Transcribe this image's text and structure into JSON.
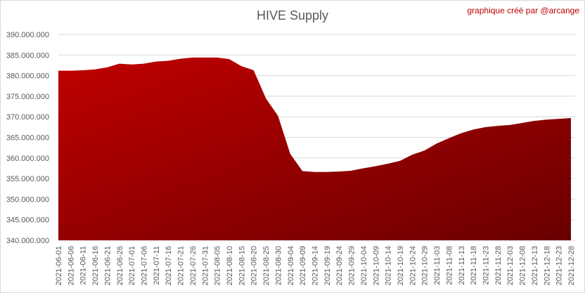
{
  "chart_data": {
    "type": "area",
    "title": "HIVE Supply",
    "annotation": "graphique créé par @arcange",
    "color": "#c00000",
    "grid": true,
    "categories": [
      "2021-06-01",
      "2021-06-06",
      "2021-06-11",
      "2021-06-16",
      "2021-06-21",
      "2021-06-26",
      "2021-07-01",
      "2021-07-06",
      "2021-07-11",
      "2021-07-16",
      "2021-07-21",
      "2021-07-26",
      "2021-07-31",
      "2021-08-05",
      "2021-08-10",
      "2021-08-15",
      "2021-08-20",
      "2021-08-25",
      "2021-08-30",
      "2021-09-04",
      "2021-09-09",
      "2021-09-14",
      "2021-09-19",
      "2021-09-24",
      "2021-09-29",
      "2021-10-04",
      "2021-10-09",
      "2021-10-14",
      "2021-10-19",
      "2021-10-24",
      "2021-10-29",
      "2021-11-03",
      "2021-11-08",
      "2021-11-13",
      "2021-11-18",
      "2021-11-23",
      "2021-11-28",
      "2021-12-03",
      "2021-12-08",
      "2021-12-13",
      "2021-12-18",
      "2021-12-23",
      "2021-12-28"
    ],
    "values": [
      381200000,
      381200000,
      381300000,
      381500000,
      382000000,
      382900000,
      382700000,
      382900000,
      383400000,
      383600000,
      384100000,
      384400000,
      384400000,
      384400000,
      384000000,
      382300000,
      381300000,
      374500000,
      370200000,
      361000000,
      356800000,
      356600000,
      356600000,
      356700000,
      356900000,
      357500000,
      358000000,
      358600000,
      359300000,
      360800000,
      361800000,
      363500000,
      364800000,
      366000000,
      366900000,
      367500000,
      367800000,
      368000000,
      368500000,
      369000000,
      369300000,
      369500000,
      369700000
    ],
    "ylim": [
      340000000,
      390000000
    ],
    "yticks": [
      {
        "value": 340000000,
        "label": "340.000.000"
      },
      {
        "value": 345000000,
        "label": "345.000.000"
      },
      {
        "value": 350000000,
        "label": "350.000.000"
      },
      {
        "value": 355000000,
        "label": "355.000.000"
      },
      {
        "value": 360000000,
        "label": "360.000.000"
      },
      {
        "value": 365000000,
        "label": "365.000.000"
      },
      {
        "value": 370000000,
        "label": "370.000.000"
      },
      {
        "value": 375000000,
        "label": "375.000.000"
      },
      {
        "value": 380000000,
        "label": "380.000.000"
      },
      {
        "value": 385000000,
        "label": "385.000.000"
      },
      {
        "value": 390000000,
        "label": "390.000.000"
      }
    ]
  }
}
